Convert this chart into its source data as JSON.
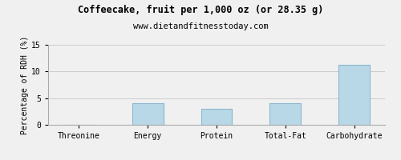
{
  "title": "Coffeecake, fruit per 1,000 oz (or 28.35 g)",
  "subtitle": "www.dietandfitnesstoday.com",
  "categories": [
    "Threonine",
    "Energy",
    "Protein",
    "Total-Fat",
    "Carbohydrate"
  ],
  "values": [
    0,
    4.0,
    3.0,
    4.0,
    11.2
  ],
  "bar_color": "#b8d8e8",
  "bar_edge_color": "#8ab8cc",
  "ylabel": "Percentage of RDH (%)",
  "ylim": [
    0,
    15
  ],
  "yticks": [
    0,
    5,
    10,
    15
  ],
  "grid_color": "#cccccc",
  "background_color": "#f0f0f0",
  "title_fontsize": 8.5,
  "subtitle_fontsize": 7.5,
  "label_fontsize": 7,
  "tick_fontsize": 7
}
